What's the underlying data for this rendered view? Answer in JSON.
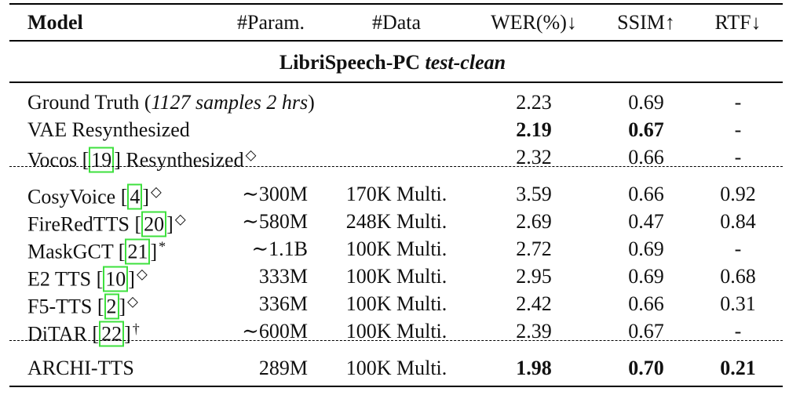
{
  "table": {
    "header": [
      "Model",
      "#Param.",
      "#Data",
      "WER(%)↓",
      "SSIM↑",
      "RTF↓"
    ],
    "section": {
      "name": "LibriSpeech-PC",
      "subset": "test-clean"
    },
    "groups": [
      {
        "rows": [
          {
            "model": [
              {
                "text": "Ground Truth ("
              },
              {
                "text": "1127 samples 2 hrs",
                "style": "italic"
              },
              {
                "text": ")"
              }
            ],
            "wer": "2.23",
            "ssim": "0.69",
            "rtf": "-"
          },
          {
            "model": [
              {
                "text": "VAE Resynthesized"
              }
            ],
            "wer": "2.19",
            "ssim": "0.67",
            "rtf": "-",
            "bold": [
              "wer",
              "ssim"
            ]
          },
          {
            "model": [
              {
                "text": "Vocos ["
              },
              {
                "text": "19",
                "style": "cite"
              },
              {
                "text": "] Resynthesized"
              },
              {
                "text": "◇",
                "style": "sup"
              }
            ],
            "wer": "2.32",
            "ssim": "0.66",
            "rtf": "-"
          }
        ]
      },
      {
        "rows": [
          {
            "model": [
              {
                "text": "CosyVoice ["
              },
              {
                "text": "4",
                "style": "cite"
              },
              {
                "text": "]"
              },
              {
                "text": "◇",
                "style": "sup"
              }
            ],
            "params": "∼300M",
            "data": "170K Multi.",
            "wer": "3.59",
            "ssim": "0.66",
            "rtf": "0.92"
          },
          {
            "model": [
              {
                "text": "FireRedTTS ["
              },
              {
                "text": "20",
                "style": "cite"
              },
              {
                "text": "]"
              },
              {
                "text": "◇",
                "style": "sup"
              }
            ],
            "params": "∼580M",
            "data": "248K Multi.",
            "wer": "2.69",
            "ssim": "0.47",
            "rtf": "0.84"
          },
          {
            "model": [
              {
                "text": "MaskGCT ["
              },
              {
                "text": "21",
                "style": "cite"
              },
              {
                "text": "]"
              },
              {
                "text": "*",
                "style": "sup"
              }
            ],
            "params": "∼1.1B",
            "data": "100K Multi.",
            "wer": "2.72",
            "ssim": "0.69",
            "rtf": "-"
          },
          {
            "model": [
              {
                "text": "E2 TTS ["
              },
              {
                "text": "10",
                "style": "cite"
              },
              {
                "text": "]"
              },
              {
                "text": "◇",
                "style": "sup"
              }
            ],
            "params": "333M",
            "data": "100K Multi.",
            "wer": "2.95",
            "ssim": "0.69",
            "rtf": "0.68"
          },
          {
            "model": [
              {
                "text": "F5-TTS ["
              },
              {
                "text": "2",
                "style": "cite"
              },
              {
                "text": "]"
              },
              {
                "text": "◇",
                "style": "sup"
              }
            ],
            "params": "336M",
            "data": "100K Multi.",
            "wer": "2.42",
            "ssim": "0.66",
            "rtf": "0.31"
          },
          {
            "model": [
              {
                "text": "DiTAR ["
              },
              {
                "text": "22",
                "style": "cite"
              },
              {
                "text": "]"
              },
              {
                "text": "†",
                "style": "sup"
              }
            ],
            "params": "∼600M",
            "data": "100K Multi.",
            "wer": "2.39",
            "ssim": "0.67",
            "rtf": "-"
          }
        ]
      },
      {
        "rows": [
          {
            "model": [
              {
                "text": "ARCHI-TTS"
              }
            ],
            "params": "289M",
            "data": "100K Multi.",
            "wer": "1.98",
            "ssim": "0.70",
            "rtf": "0.21",
            "bold": [
              "wer",
              "ssim",
              "rtf"
            ]
          }
        ]
      }
    ]
  }
}
